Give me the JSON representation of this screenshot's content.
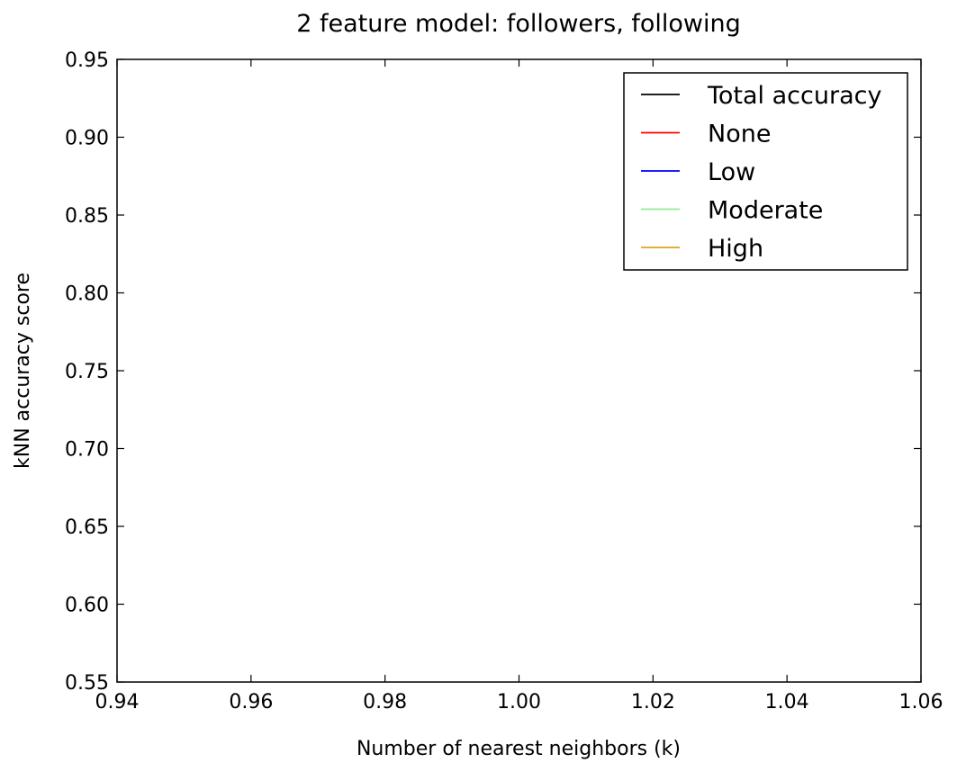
{
  "chart_data": {
    "type": "line",
    "title": "2 feature model: followers, following",
    "xlabel": "Number of nearest neighbors (k)",
    "ylabel": "kNN accuracy score",
    "xlim": [
      0.94,
      1.06
    ],
    "ylim": [
      0.55,
      0.95
    ],
    "x_ticks": [
      "0.94",
      "0.96",
      "0.98",
      "1.00",
      "1.02",
      "1.04",
      "1.06"
    ],
    "y_ticks": [
      "0.55",
      "0.60",
      "0.65",
      "0.70",
      "0.75",
      "0.80",
      "0.85",
      "0.90",
      "0.95"
    ],
    "grid": false,
    "legend_position": "top-right",
    "series": [
      {
        "name": "Total accuracy",
        "color": "#000000",
        "x": [],
        "y": []
      },
      {
        "name": "None",
        "color": "#ff0000",
        "x": [],
        "y": []
      },
      {
        "name": "Low",
        "color": "#0000ff",
        "x": [],
        "y": []
      },
      {
        "name": "Moderate",
        "color": "#90ee90",
        "x": [],
        "y": []
      },
      {
        "name": "High",
        "color": "#daa520",
        "x": [],
        "y": []
      }
    ]
  }
}
